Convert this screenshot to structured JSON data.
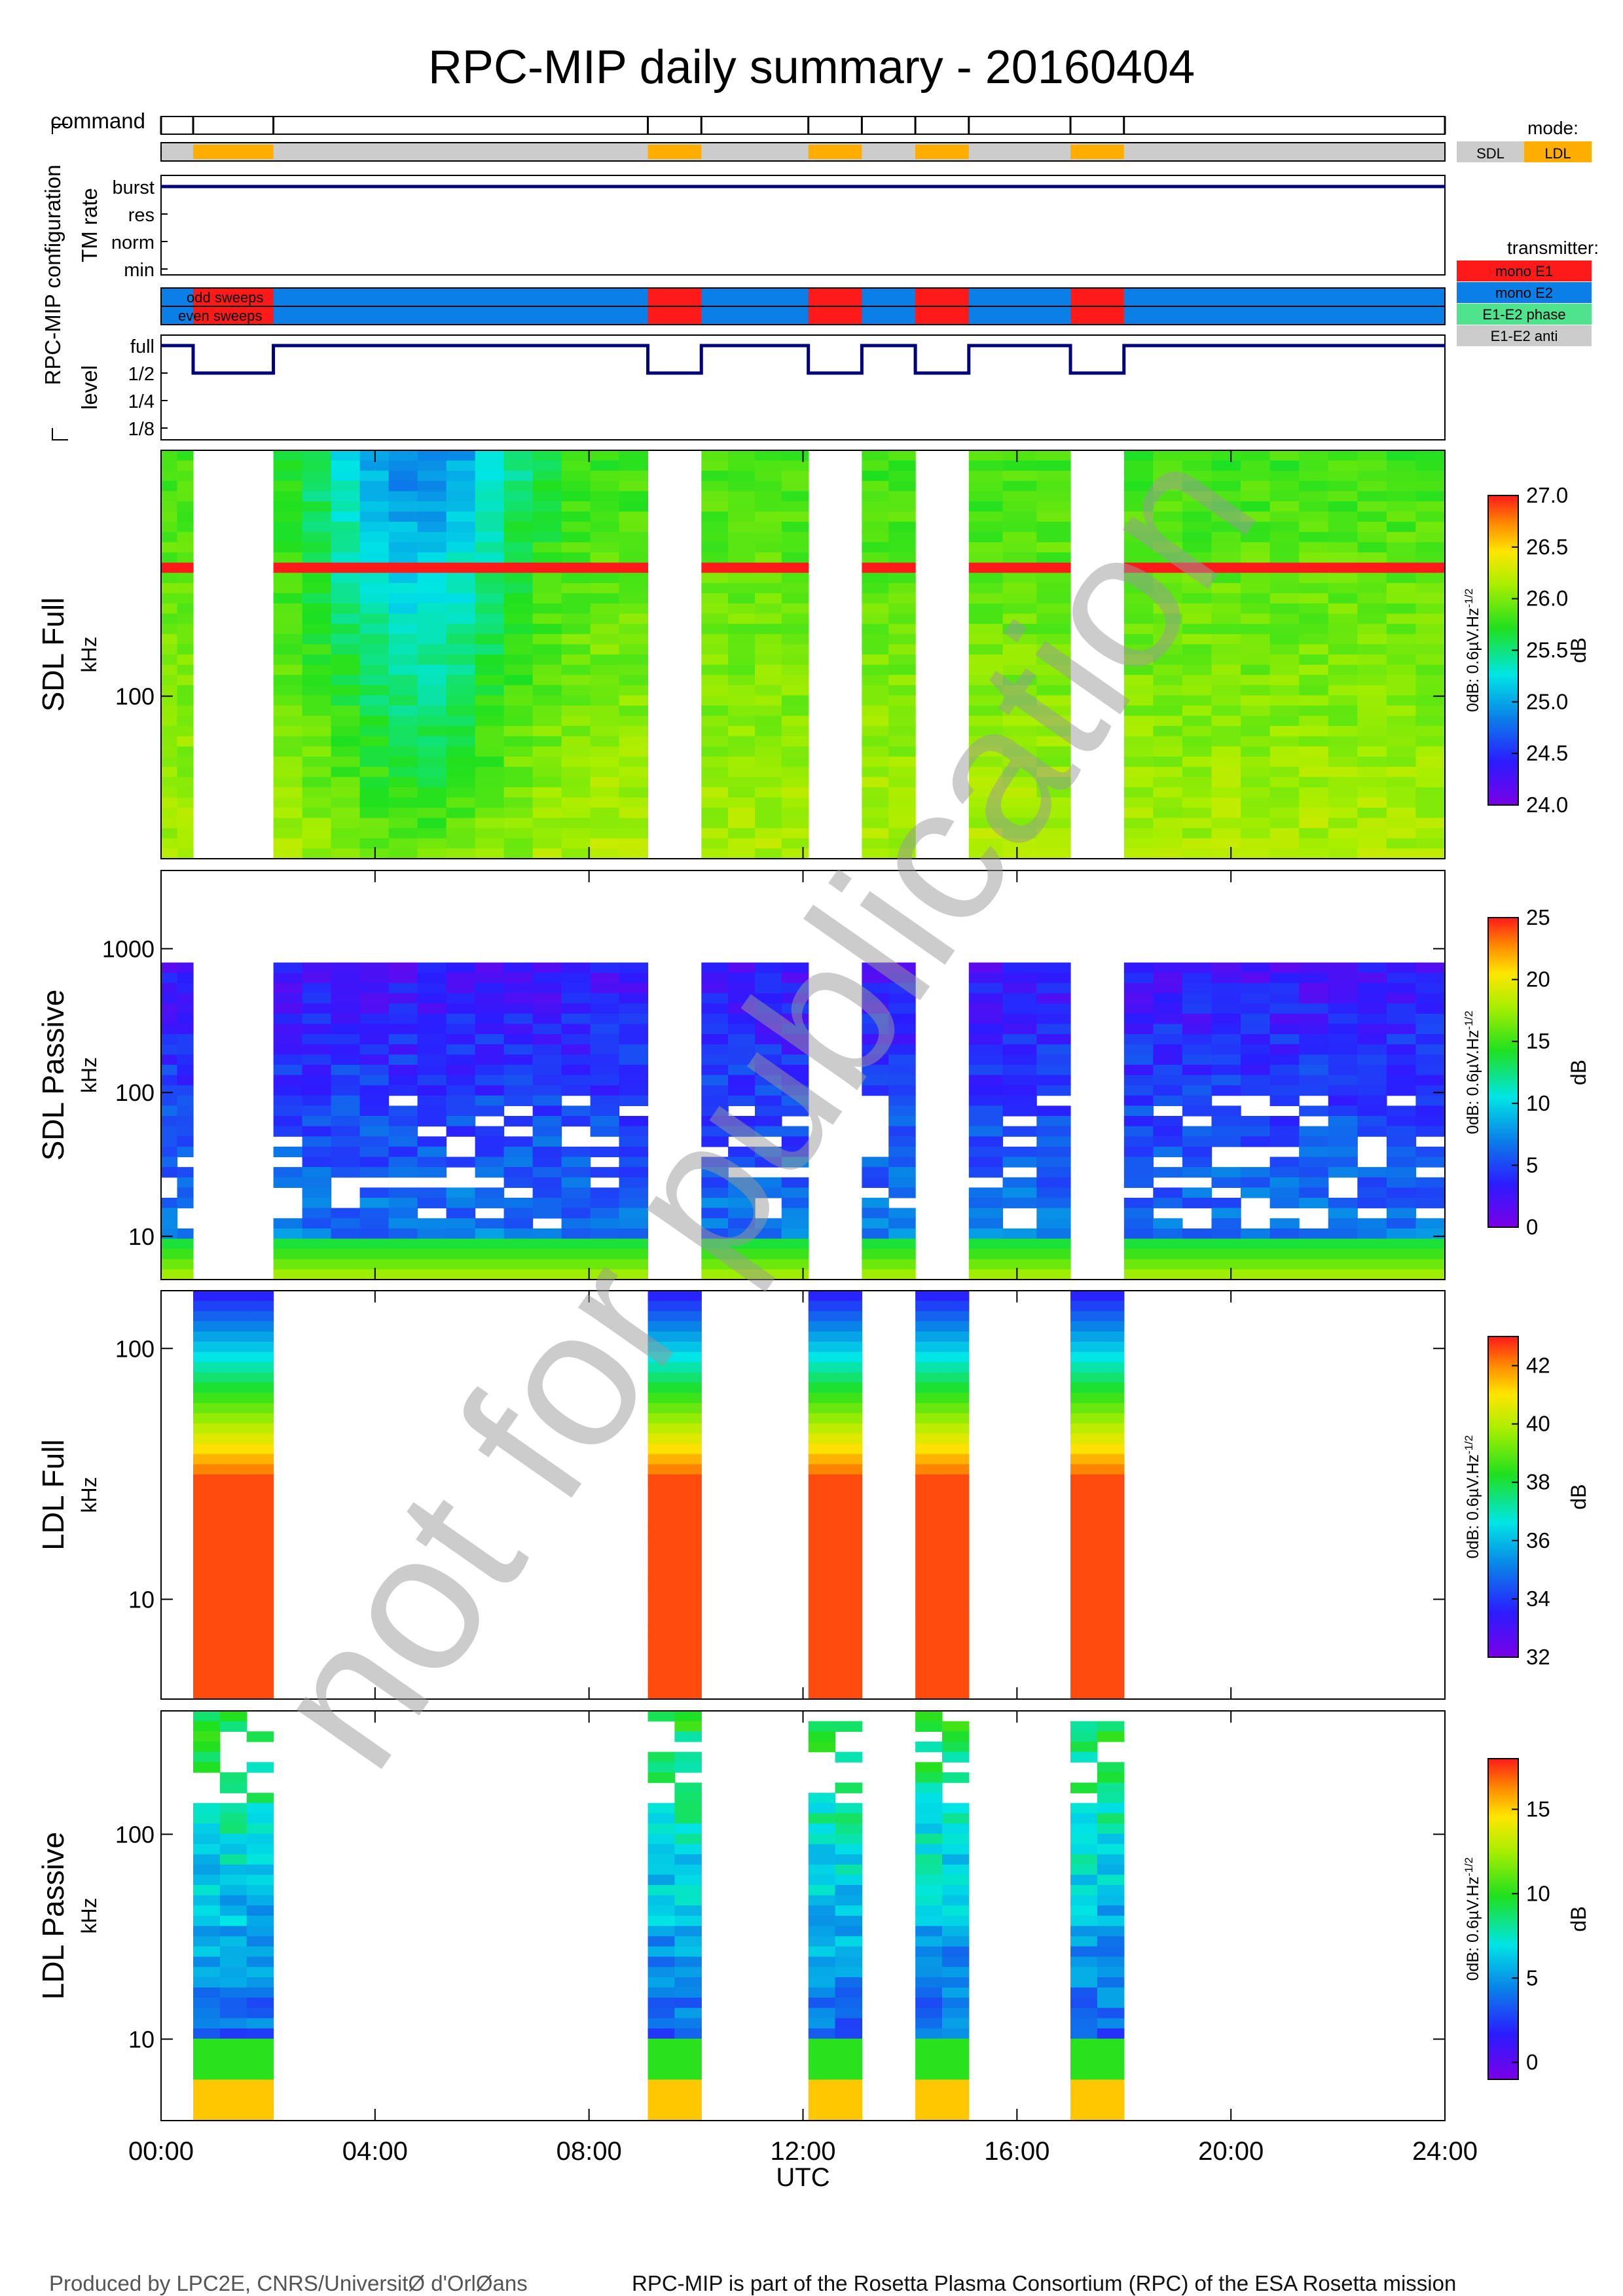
{
  "title": "RPC-MIP daily summary - 20160404",
  "footer": {
    "left": "Produced by LPC2E, CNRS/UniversitØ d'OrlØans",
    "right": "RPC-MIP is part of the Rosetta Plasma Consortium (RPC) of the ESA Rosetta mission"
  },
  "watermark": "not for publication",
  "colors": {
    "sdl": "#cccccc",
    "ldl": "#ffad00",
    "mono_e1": "#ff1a1a",
    "mono_e2": "#0a7fe8",
    "e1e2_phase": "#4fe38e",
    "e1e2_anti": "#cccccc",
    "line": "#00007a"
  },
  "chart_data": {
    "type": "heatmap",
    "xlabel": "UTC",
    "xlim_hours": [
      0,
      24
    ],
    "x_ticks": [
      {
        "hour": 0,
        "label": "00:00"
      },
      {
        "hour": 4,
        "label": "04:00"
      },
      {
        "hour": 8,
        "label": "08:00"
      },
      {
        "hour": 12,
        "label": "12:00"
      },
      {
        "hour": 16,
        "label": "16:00"
      },
      {
        "hour": 20,
        "label": "20:00"
      },
      {
        "hour": 24,
        "label": "24:00"
      }
    ],
    "command_times_hours": [
      0.0,
      0.6,
      2.1,
      9.1,
      10.1,
      12.1,
      13.1,
      14.1,
      15.1,
      17.0,
      18.0,
      24.0
    ],
    "ldl_intervals_hours": [
      [
        0.6,
        2.1
      ],
      [
        9.1,
        10.1
      ],
      [
        12.1,
        13.1
      ],
      [
        14.1,
        15.1
      ],
      [
        17.0,
        18.0
      ]
    ],
    "config": {
      "group_label": "RPC-MIP configuration",
      "command_label": "command",
      "tm_rate": {
        "label": "TM rate",
        "levels": [
          "burst",
          "res",
          "norm",
          "min"
        ],
        "value": "burst"
      },
      "sweeps": {
        "labels": [
          "odd sweeps",
          "even sweeps"
        ]
      },
      "level": {
        "label": "level",
        "levels": [
          "full",
          "1/2",
          "1/4",
          "1/8"
        ],
        "sdl_value": "full",
        "ldl_value": "1/2"
      }
    },
    "legends": {
      "mode": {
        "title": "mode:",
        "items": [
          "SDL",
          "LDL"
        ]
      },
      "transmitter": {
        "title": "transmitter:",
        "items": [
          "mono E1",
          "mono E2",
          "E1-E2 phase",
          "E1-E2 anti"
        ]
      }
    },
    "panels": [
      {
        "name": "SDL Full",
        "unit": "kHz",
        "y_log": true,
        "ylim": [
          40,
          400
        ],
        "y_ticks": [
          {
            "value": 100,
            "label": "100"
          }
        ],
        "shown_in": "SDL",
        "dB_range": [
          24.0,
          27.0
        ],
        "cbar_ticks": [
          "24.0",
          "24.5",
          "25.0",
          "25.5",
          "26.0",
          "26.5",
          "27.0"
        ],
        "cbar_label": "0dB: 0.6µV.Hz",
        "cbar_exp": "-1/2",
        "cbar_unit": "dB"
      },
      {
        "name": "SDL Passive",
        "unit": "kHz",
        "y_log": true,
        "ylim": [
          5,
          3500
        ],
        "y_ticks": [
          {
            "value": 10,
            "label": "10"
          },
          {
            "value": 100,
            "label": "100"
          },
          {
            "value": 1000,
            "label": "1000"
          }
        ],
        "shown_in": "SDL",
        "dB_range": [
          0,
          25
        ],
        "cbar_ticks": [
          "0",
          "5",
          "10",
          "15",
          "20",
          "25"
        ],
        "cbar_label": "0dB: 0.6µV.Hz",
        "cbar_exp": "-1/2",
        "cbar_unit": "dB"
      },
      {
        "name": "LDL Full",
        "unit": "kHz",
        "y_log": true,
        "ylim": [
          4,
          170
        ],
        "y_ticks": [
          {
            "value": 10,
            "label": "10"
          },
          {
            "value": 100,
            "label": "100"
          }
        ],
        "shown_in": "LDL",
        "dB_range": [
          32,
          43
        ],
        "cbar_ticks": [
          "32",
          "34",
          "36",
          "38",
          "40",
          "42"
        ],
        "cbar_label": "0dB: 0.6µV.Hz",
        "cbar_exp": "-1/2",
        "cbar_unit": "dB"
      },
      {
        "name": "LDL Passive",
        "unit": "kHz",
        "y_log": true,
        "ylim": [
          4,
          400
        ],
        "y_ticks": [
          {
            "value": 10,
            "label": "10"
          },
          {
            "value": 100,
            "label": "100"
          }
        ],
        "shown_in": "LDL",
        "dB_range": [
          -1,
          18
        ],
        "cbar_ticks": [
          "0",
          "5",
          "10",
          "15"
        ],
        "cbar_label": "0dB: 0.6µV.Hz",
        "cbar_exp": "-1/2",
        "cbar_unit": "dB"
      }
    ]
  }
}
